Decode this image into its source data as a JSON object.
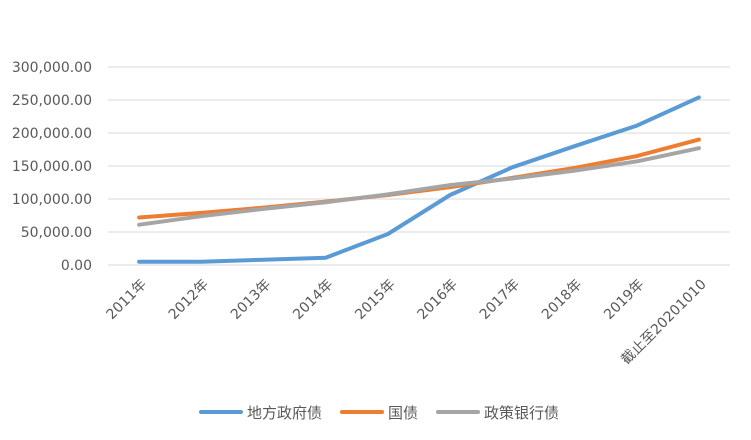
{
  "chart_data": {
    "type": "line",
    "title": "",
    "xlabel": "",
    "ylabel": "",
    "categories": [
      "2011年",
      "2012年",
      "2013年",
      "2014年",
      "2015年",
      "2016年",
      "2017年",
      "2018年",
      "2019年",
      "截止至20201010"
    ],
    "yticks": [
      "0.00",
      "50,000.00",
      "100,000.00",
      "150,000.00",
      "200,000.00",
      "250,000.00",
      "300,000.00"
    ],
    "ylim": [
      0,
      300000
    ],
    "grid": true,
    "legend_position": "bottom",
    "series": [
      {
        "name": "地方政府债",
        "color": "#5B9BD5",
        "values": [
          5000,
          5000,
          8000,
          11000,
          47000,
          106000,
          148000,
          180000,
          211000,
          254000
        ]
      },
      {
        "name": "国债",
        "color": "#ED7D31",
        "values": [
          72000,
          79000,
          87000,
          96000,
          106000,
          118000,
          132000,
          147000,
          165000,
          190000
        ]
      },
      {
        "name": "政策银行债",
        "color": "#A5A5A5",
        "values": [
          61000,
          74000,
          85000,
          95000,
          107000,
          121000,
          131000,
          143000,
          157000,
          177000
        ]
      }
    ]
  }
}
